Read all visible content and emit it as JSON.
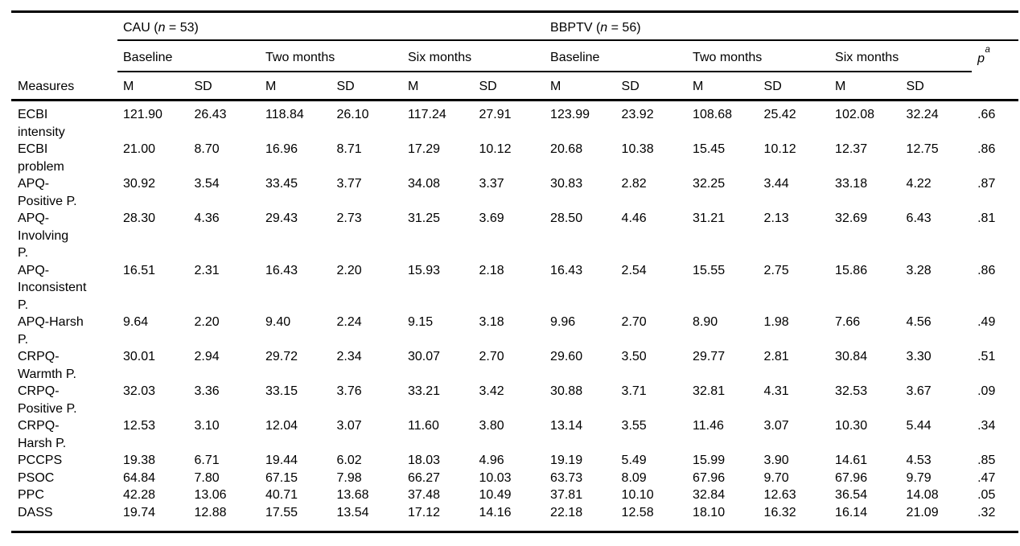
{
  "table": {
    "measures_header": "Measures",
    "groups": [
      {
        "prefix": "CAU (",
        "italic": "n",
        "suffix": " = 53)"
      },
      {
        "prefix": "BBPTV (",
        "italic": "n",
        "suffix": " = 56)"
      }
    ],
    "time_headers": [
      "Baseline",
      "Two months",
      "Six months"
    ],
    "p_header": {
      "italic": "p",
      "sup": "a"
    },
    "stat_headers": [
      "M",
      "SD"
    ],
    "rows": [
      {
        "measure": "ECBI\nintensity",
        "values": [
          "121.90",
          "26.43",
          "118.84",
          "26.10",
          "117.24",
          "27.91",
          "123.99",
          "23.92",
          "108.68",
          "25.42",
          "102.08",
          "32.24"
        ],
        "p": ".66"
      },
      {
        "measure": "ECBI\nproblem",
        "values": [
          "21.00",
          "8.70",
          "16.96",
          "8.71",
          "17.29",
          "10.12",
          "20.68",
          "10.38",
          "15.45",
          "10.12",
          "12.37",
          "12.75"
        ],
        "p": ".86"
      },
      {
        "measure": "APQ-\nPositive P.",
        "values": [
          "30.92",
          "3.54",
          "33.45",
          "3.77",
          "34.08",
          "3.37",
          "30.83",
          "2.82",
          "32.25",
          "3.44",
          "33.18",
          "4.22"
        ],
        "p": ".87"
      },
      {
        "measure": "APQ-\nInvolving\nP.",
        "values": [
          "28.30",
          "4.36",
          "29.43",
          "2.73",
          "31.25",
          "3.69",
          "28.50",
          "4.46",
          "31.21",
          "2.13",
          "32.69",
          "6.43"
        ],
        "p": ".81"
      },
      {
        "measure": "APQ-\nInconsistent\nP.",
        "values": [
          "16.51",
          "2.31",
          "16.43",
          "2.20",
          "15.93",
          "2.18",
          "16.43",
          "2.54",
          "15.55",
          "2.75",
          "15.86",
          "3.28"
        ],
        "p": ".86"
      },
      {
        "measure": "APQ-Harsh\nP.",
        "values": [
          "9.64",
          "2.20",
          "9.40",
          "2.24",
          "9.15",
          "3.18",
          "9.96",
          "2.70",
          "8.90",
          "1.98",
          "7.66",
          "4.56"
        ],
        "p": ".49"
      },
      {
        "measure": "CRPQ-\nWarmth P.",
        "values": [
          "30.01",
          "2.94",
          "29.72",
          "2.34",
          "30.07",
          "2.70",
          "29.60",
          "3.50",
          "29.77",
          "2.81",
          "30.84",
          "3.30"
        ],
        "p": ".51"
      },
      {
        "measure": "CRPQ-\nPositive P.",
        "values": [
          "32.03",
          "3.36",
          "33.15",
          "3.76",
          "33.21",
          "3.42",
          "30.88",
          "3.71",
          "32.81",
          "4.31",
          "32.53",
          "3.67"
        ],
        "p": ".09"
      },
      {
        "measure": "CRPQ-\nHarsh P.",
        "values": [
          "12.53",
          "3.10",
          "12.04",
          "3.07",
          "11.60",
          "3.80",
          "13.14",
          "3.55",
          "11.46",
          "3.07",
          "10.30",
          "5.44"
        ],
        "p": ".34"
      },
      {
        "measure": "PCCPS",
        "values": [
          "19.38",
          "6.71",
          "19.44",
          "6.02",
          "18.03",
          "4.96",
          "19.19",
          "5.49",
          "15.99",
          "3.90",
          "14.61",
          "4.53"
        ],
        "p": ".85"
      },
      {
        "measure": "PSOC",
        "values": [
          "64.84",
          "7.80",
          "67.15",
          "7.98",
          "66.27",
          "10.03",
          "63.73",
          "8.09",
          "67.96",
          "9.70",
          "67.96",
          "9.79"
        ],
        "p": ".47"
      },
      {
        "measure": "PPC",
        "values": [
          "42.28",
          "13.06",
          "40.71",
          "13.68",
          "37.48",
          "10.49",
          "37.81",
          "10.10",
          "32.84",
          "12.63",
          "36.54",
          "14.08"
        ],
        "p": ".05"
      },
      {
        "measure": "DASS",
        "values": [
          "19.74",
          "12.88",
          "17.55",
          "13.54",
          "17.12",
          "14.16",
          "22.18",
          "12.58",
          "18.10",
          "16.32",
          "16.14",
          "21.09"
        ],
        "p": ".32"
      }
    ]
  }
}
